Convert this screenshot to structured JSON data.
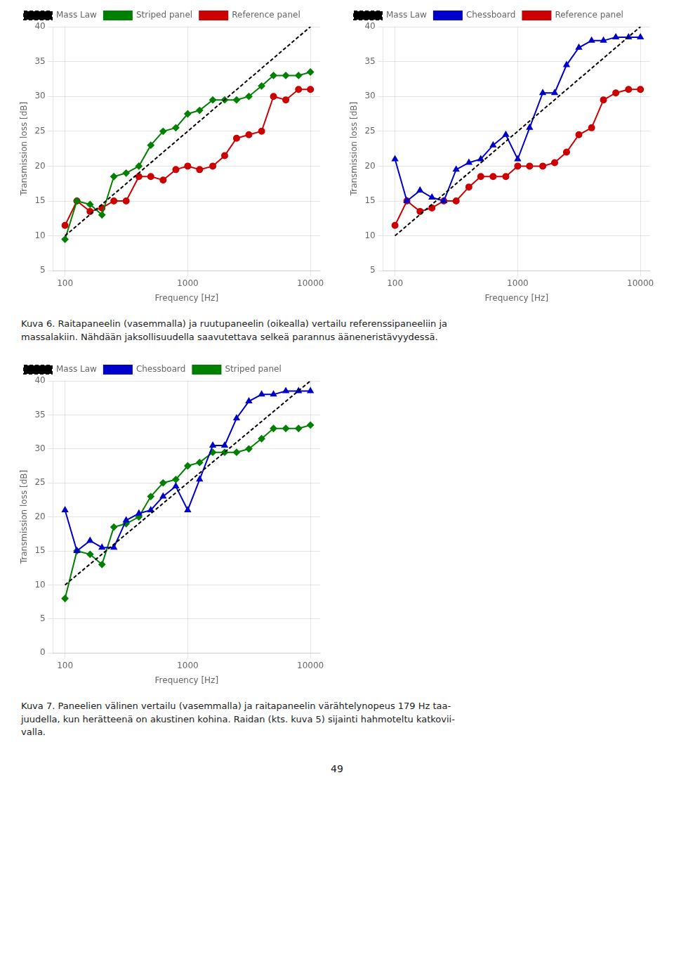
{
  "chart_data": [
    {
      "type": "line",
      "xlabel": "Frequency [Hz]",
      "ylabel": "Transmission loss [dB]",
      "log": "x",
      "xlim": [
        80,
        12000
      ],
      "xticks": [
        100,
        1000,
        10000
      ],
      "ylim": [
        5,
        40
      ],
      "yticks": [
        5,
        10,
        15,
        20,
        25,
        30,
        35,
        40
      ],
      "grid": true,
      "legend": "upper left",
      "x": [
        100,
        125,
        160,
        200,
        250,
        315,
        400,
        500,
        630,
        800,
        1000,
        1250,
        1600,
        2000,
        2500,
        3150,
        4000,
        5000,
        6300,
        8000,
        10000
      ],
      "series": [
        {
          "name": "Mass Law",
          "color": "black",
          "line_style": "dashed",
          "x": [
            100,
            10000
          ],
          "values": [
            10,
            40
          ]
        },
        {
          "name": "Striped panel",
          "color": "#008000",
          "marker": "diamond",
          "line_style": "solid",
          "values": [
            9.5,
            15.0,
            14.5,
            13.0,
            18.5,
            19.0,
            20.0,
            23.0,
            25.0,
            25.5,
            27.5,
            28.0,
            29.5,
            29.5,
            29.5,
            30.0,
            31.5,
            33.0,
            33.0,
            33.0,
            33.5
          ]
        },
        {
          "name": "Reference panel",
          "color": "#cc0000",
          "marker": "circle",
          "line_style": "solid",
          "values": [
            11.5,
            15.0,
            13.5,
            14.0,
            15.0,
            15.0,
            18.5,
            18.5,
            18.0,
            19.5,
            20.0,
            19.5,
            20.0,
            21.5,
            24.0,
            24.5,
            25.0,
            30.0,
            29.5,
            31.0,
            31.0
          ]
        }
      ]
    },
    {
      "type": "line",
      "xlabel": "Frequency [Hz]",
      "ylabel": "Transmission loss [dB]",
      "log": "x",
      "xlim": [
        80,
        12000
      ],
      "xticks": [
        100,
        1000,
        10000
      ],
      "ylim": [
        5,
        40
      ],
      "yticks": [
        5,
        10,
        15,
        20,
        25,
        30,
        35,
        40
      ],
      "grid": true,
      "legend": "upper left",
      "x": [
        100,
        125,
        160,
        200,
        250,
        315,
        400,
        500,
        630,
        800,
        1000,
        1250,
        1600,
        2000,
        2500,
        3150,
        4000,
        5000,
        6300,
        8000,
        10000
      ],
      "series": [
        {
          "name": "Mass Law",
          "color": "black",
          "line_style": "dashed",
          "x": [
            100,
            10000
          ],
          "values": [
            10,
            40
          ]
        },
        {
          "name": "Chessboard",
          "color": "#0000cc",
          "marker": "triangle",
          "line_style": "solid",
          "values": [
            21.0,
            15.0,
            16.5,
            15.5,
            15.0,
            19.5,
            20.5,
            21.0,
            23.0,
            24.5,
            21.0,
            25.5,
            30.5,
            30.5,
            34.5,
            37.0,
            38.0,
            38.0,
            38.5,
            38.5,
            38.5
          ]
        },
        {
          "name": "Reference panel",
          "color": "#cc0000",
          "marker": "circle",
          "line_style": "solid",
          "values": [
            11.5,
            15.0,
            13.5,
            14.0,
            15.0,
            15.0,
            17.0,
            18.5,
            18.5,
            18.5,
            20.0,
            20.0,
            20.0,
            20.5,
            22.0,
            24.5,
            25.5,
            29.5,
            30.5,
            31.0,
            31.0
          ]
        }
      ]
    },
    {
      "type": "line",
      "xlabel": "Frequency [Hz]",
      "ylabel": "Transmission loss [dB]",
      "log": "x",
      "xlim": [
        80,
        12000
      ],
      "xticks": [
        100,
        1000,
        10000
      ],
      "ylim": [
        0,
        40
      ],
      "yticks": [
        0,
        5,
        10,
        15,
        20,
        25,
        30,
        35,
        40
      ],
      "grid": true,
      "legend": "upper left",
      "x": [
        100,
        125,
        160,
        200,
        250,
        315,
        400,
        500,
        630,
        800,
        1000,
        1250,
        1600,
        2000,
        2500,
        3150,
        4000,
        5000,
        6300,
        8000,
        10000
      ],
      "series": [
        {
          "name": "Mass Law",
          "color": "black",
          "line_style": "dashed",
          "x": [
            100,
            10000
          ],
          "values": [
            10,
            40
          ]
        },
        {
          "name": "Chessboard",
          "color": "#0000cc",
          "marker": "triangle",
          "line_style": "solid",
          "values": [
            21.0,
            15.0,
            16.5,
            15.5,
            15.5,
            19.5,
            20.5,
            21.0,
            23.0,
            24.5,
            21.0,
            25.5,
            30.5,
            30.5,
            34.5,
            37.0,
            38.0,
            38.0,
            38.5,
            38.5,
            38.5
          ]
        },
        {
          "name": "Striped panel",
          "color": "#008000",
          "marker": "diamond",
          "line_style": "solid",
          "values": [
            8.0,
            15.0,
            14.5,
            13.0,
            18.5,
            19.0,
            20.0,
            23.0,
            25.0,
            25.5,
            27.5,
            28.0,
            29.5,
            29.5,
            29.5,
            30.0,
            31.5,
            33.0,
            33.0,
            33.0,
            33.5
          ]
        }
      ]
    }
  ],
  "captions": [
    "Kuva 6. Raitapaneelin (vasemmalla) ja ruutupaneelin (oikealla) vertailu referenssipaneeliin ja\nmassalakiin. Nähdään jaksollisuudella saavutettava selkeä parannus ääneneristävyydessä.",
    "Kuva 7. Paneelien välinen vertailu (vasemmalla) ja raitapaneelin värähtelynopeus 179 Hz taa-\njuudella, kun herätteenä on akustinen kohina. Raidan (kts. kuva 5) sijainti hahmoteltu katkovii-\nvalla."
  ],
  "page_number": "49"
}
